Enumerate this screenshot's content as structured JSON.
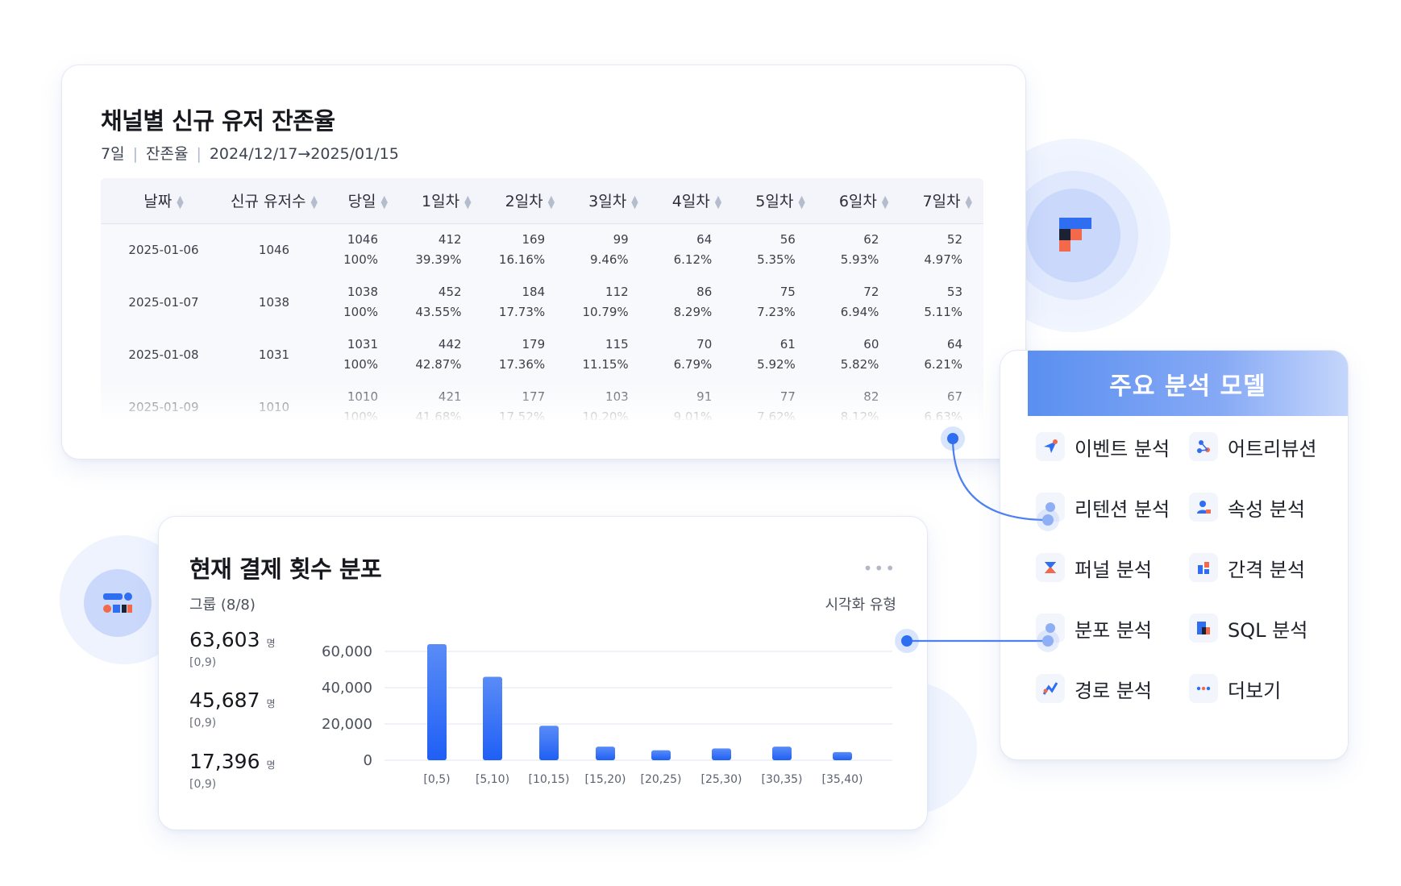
{
  "retention": {
    "title": "채널별 신규 유저 잔존율",
    "meta_period": "7일",
    "meta_metric": "잔존율",
    "meta_range": "2024/12/17→2025/01/15",
    "columns": [
      "날짜",
      "신규 유저수",
      "당일",
      "1일차",
      "2일차",
      "3일차",
      "4일차",
      "5일차",
      "6일차",
      "7일차"
    ],
    "rows": [
      {
        "date": "2025-01-06",
        "new": "1046",
        "cells": [
          [
            "1046",
            "100%"
          ],
          [
            "412",
            "39.39%"
          ],
          [
            "169",
            "16.16%"
          ],
          [
            "99",
            "9.46%"
          ],
          [
            "64",
            "6.12%"
          ],
          [
            "56",
            "5.35%"
          ],
          [
            "62",
            "5.93%"
          ],
          [
            "52",
            "4.97%"
          ]
        ]
      },
      {
        "date": "2025-01-07",
        "new": "1038",
        "cells": [
          [
            "1038",
            "100%"
          ],
          [
            "452",
            "43.55%"
          ],
          [
            "184",
            "17.73%"
          ],
          [
            "112",
            "10.79%"
          ],
          [
            "86",
            "8.29%"
          ],
          [
            "75",
            "7.23%"
          ],
          [
            "72",
            "6.94%"
          ],
          [
            "53",
            "5.11%"
          ]
        ]
      },
      {
        "date": "2025-01-08",
        "new": "1031",
        "cells": [
          [
            "1031",
            "100%"
          ],
          [
            "442",
            "42.87%"
          ],
          [
            "179",
            "17.36%"
          ],
          [
            "115",
            "11.15%"
          ],
          [
            "70",
            "6.79%"
          ],
          [
            "61",
            "5.92%"
          ],
          [
            "60",
            "5.82%"
          ],
          [
            "64",
            "6.21%"
          ]
        ]
      },
      {
        "date": "2025-01-09",
        "new": "1010",
        "cells": [
          [
            "1010",
            "100%"
          ],
          [
            "421",
            "41.68%"
          ],
          [
            "177",
            "17.52%"
          ],
          [
            "103",
            "10.20%"
          ],
          [
            "91",
            "9.01%"
          ],
          [
            "77",
            "7.62%"
          ],
          [
            "82",
            "8.12%"
          ],
          [
            "67",
            "6.63%"
          ]
        ]
      }
    ]
  },
  "distribution": {
    "title": "현재 결제 횟수 분포",
    "group_label": "그룹  (8/8)",
    "vis_type_label": "시각화 유형",
    "more_label": "•••",
    "stats": [
      {
        "value": "63,603",
        "unit": "명",
        "range": "[0,9)"
      },
      {
        "value": "45,687",
        "unit": "명",
        "range": "[0,9)"
      },
      {
        "value": "17,396",
        "unit": "명",
        "range": "[0,9)"
      }
    ]
  },
  "chart_data": {
    "type": "bar",
    "categories": [
      "[0,5)",
      "[5,10)",
      "[10,15)",
      "[15,20)",
      "[20,25)",
      "[25,30)",
      "[30,35)",
      "[35,40)"
    ],
    "values": [
      64000,
      46000,
      19000,
      7500,
      5500,
      6500,
      7500,
      4500
    ],
    "yticks": [
      0,
      20000,
      40000,
      60000
    ],
    "ytick_labels": [
      "0",
      "20,000",
      "40,000",
      "60,000"
    ],
    "ylim": [
      0,
      64000
    ],
    "grid": true,
    "bar_color": "#1f5ff5"
  },
  "model_panel": {
    "title": "주요 분석 모델",
    "items": [
      {
        "label": "이벤트 분석",
        "icon": "event-icon"
      },
      {
        "label": "어트리뷰션",
        "icon": "attribution-icon"
      },
      {
        "label": "리텐션 분석",
        "icon": "retention-icon"
      },
      {
        "label": "속성 분석",
        "icon": "property-icon"
      },
      {
        "label": "퍼널 분석",
        "icon": "funnel-icon"
      },
      {
        "label": "간격 분석",
        "icon": "interval-icon"
      },
      {
        "label": "분포 분석",
        "icon": "distribution-icon"
      },
      {
        "label": "SQL 분석",
        "icon": "sql-icon"
      },
      {
        "label": "경로 분석",
        "icon": "path-icon"
      },
      {
        "label": "더보기",
        "icon": "more-icon"
      }
    ]
  },
  "colors": {
    "accent": "#2f6ef0",
    "brand_orange": "#f26a4b",
    "brand_dark": "#1c2233",
    "bar": "#1f5ff5"
  }
}
